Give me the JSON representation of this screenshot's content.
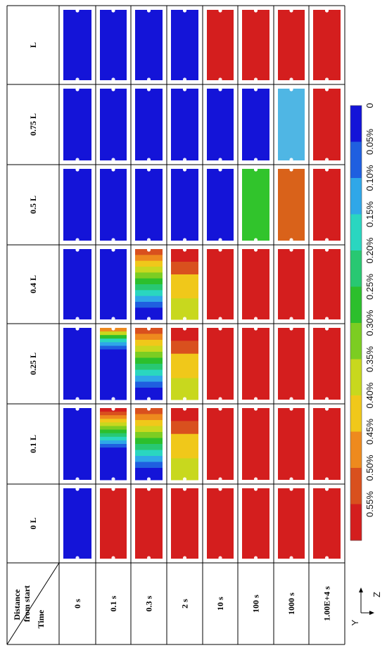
{
  "header": {
    "corner_top": "Distance from start",
    "corner_bottom": "Time"
  },
  "positions": [
    "0 L",
    "0.1 L",
    "0.25 L",
    "0.4 L",
    "0.5 L",
    "0.75 L",
    "L"
  ],
  "times": [
    "0 s",
    "0.1 s",
    "0.3 s",
    "2 s",
    "10 s",
    "100 s",
    "1000 s",
    "1.00E+4 s"
  ],
  "axes": {
    "y": "Y",
    "z": "Z"
  },
  "colorbar": {
    "labels": [
      "0",
      "0.05%",
      "0.10%",
      "0.15%",
      "0.20%",
      "0.25%",
      "0.30%",
      "0.35%",
      "0.40%",
      "0.45%",
      "0.50%",
      "0.55%"
    ],
    "colors": [
      "#1414d8",
      "#1f5fe0",
      "#2fa7e8",
      "#2ad6c0",
      "#28c872",
      "#2cbf2c",
      "#7ccd22",
      "#c8d81e",
      "#f0c81a",
      "#ee8a1e",
      "#d9501e",
      "#d41e1e"
    ]
  },
  "fields": {
    "0 s": [
      "0",
      "0",
      "0",
      "0",
      "0",
      "0",
      "0"
    ],
    "0.1 s": [
      "h",
      "g0.1",
      "g0.1s",
      "0",
      "0",
      "0",
      "0"
    ],
    "0.3 s": [
      "h",
      "g0.3",
      "g0.3",
      "g0.3",
      "0",
      "0",
      "0"
    ],
    "2 s": [
      "h",
      "g2",
      "g2",
      "g2",
      "0",
      "0",
      "0"
    ],
    "10 s": [
      "h",
      "h",
      "h",
      "h",
      "0",
      "0",
      "h"
    ],
    "100 s": [
      "h",
      "h",
      "h",
      "h",
      "m",
      "0",
      "h"
    ],
    "1000 s": [
      "h",
      "h",
      "h",
      "h",
      "o",
      "c",
      "h"
    ],
    "1.00E+4 s": [
      "h",
      "h",
      "h",
      "h",
      "h",
      "h",
      "h"
    ]
  }
}
